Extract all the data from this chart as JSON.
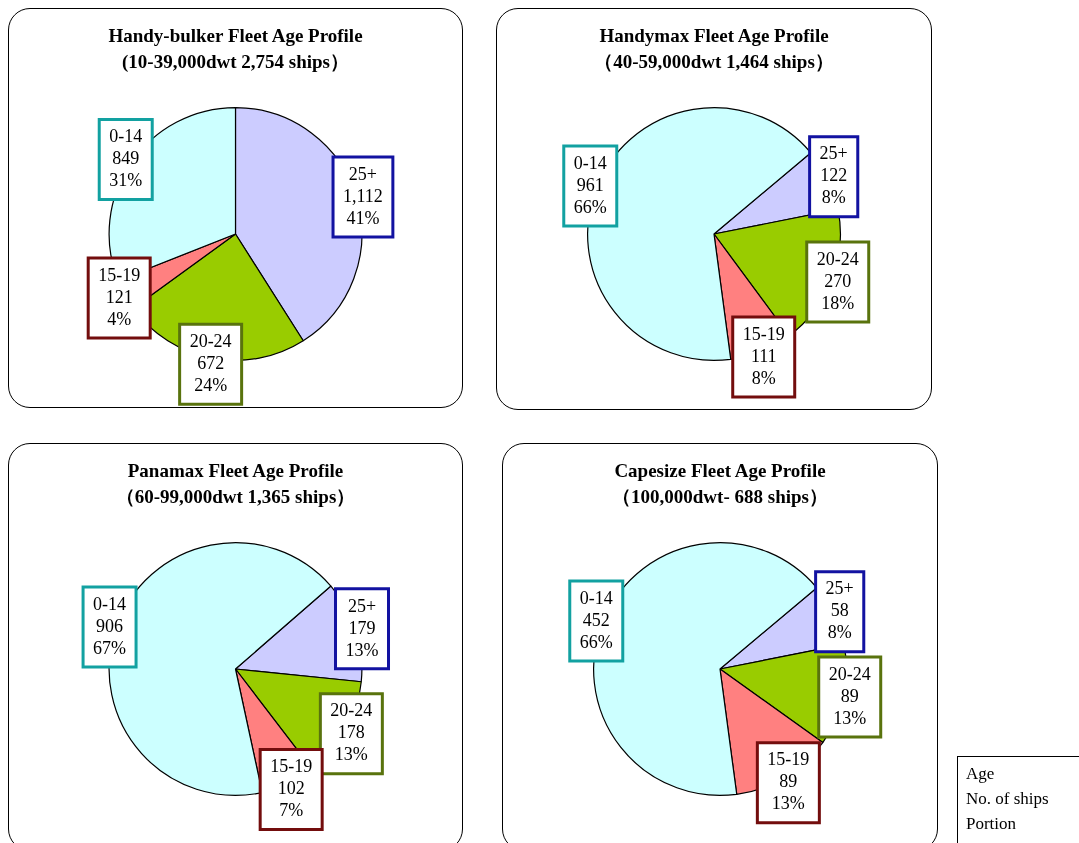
{
  "chart_data": [
    {
      "type": "pie",
      "title": "Handy-bulker Fleet Age Profile",
      "subtitle": "(10-39,000dwt  2,754 ships）",
      "categories": [
        "25+",
        "20-24",
        "15-19",
        "0-14"
      ],
      "values": [
        41,
        24,
        4,
        31
      ],
      "value_labels": [
        "1,112\n41%",
        "672\n24%",
        "121\n4%",
        "849\n31%"
      ],
      "colors": [
        "#ccccff",
        "#99cc00",
        "#ff8080",
        "#ccffff"
      ]
    },
    {
      "type": "pie",
      "title": "Handymax Fleet Age Profile",
      "subtitle": "（40-59,000dwt  1,464 ships）",
      "categories": [
        "25+",
        "20-24",
        "15-19",
        "0-14"
      ],
      "values": [
        8,
        18,
        8,
        66
      ],
      "value_labels": [
        "122\n8%",
        "270\n18%",
        "111\n8%",
        "961\n66%"
      ],
      "colors": [
        "#ccccff",
        "#99cc00",
        "#ff8080",
        "#ccffff"
      ]
    },
    {
      "type": "pie",
      "title": "Panamax Fleet Age Profile",
      "subtitle": "（60-99,000dwt  1,365 ships）",
      "categories": [
        "25+",
        "20-24",
        "15-19",
        "0-14"
      ],
      "values": [
        13,
        13,
        7,
        67
      ],
      "value_labels": [
        "179\n13%",
        "178\n13%",
        "102\n7%",
        "906\n67%"
      ],
      "colors": [
        "#ccccff",
        "#99cc00",
        "#ff8080",
        "#ccffff"
      ]
    },
    {
      "type": "pie",
      "title": "Capesize Fleet Age Profile",
      "subtitle": "（100,000dwt-  688 ships）",
      "categories": [
        "25+",
        "20-24",
        "15-19",
        "0-14"
      ],
      "values": [
        8,
        13,
        13,
        66
      ],
      "value_labels": [
        "58\n8%",
        "89\n13%",
        "89\n13%",
        "452\n66%"
      ],
      "colors": [
        "#ccccff",
        "#99cc00",
        "#ff8080",
        "#ccffff"
      ]
    },
    {
      "type": "other",
      "annotations": [
        "Age",
        "No. of ships",
        "Portion"
      ]
    }
  ]
}
